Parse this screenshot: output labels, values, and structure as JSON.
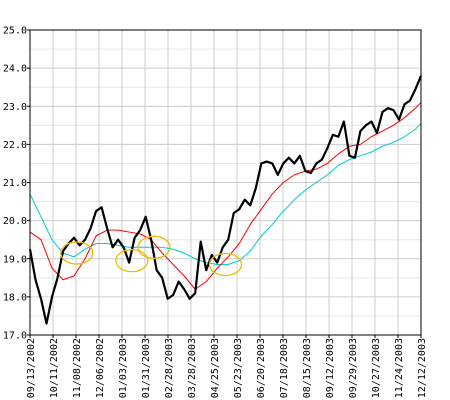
{
  "chart_data": {
    "type": "line",
    "grid": true,
    "ylim": [
      17.0,
      25.0
    ],
    "yticks": [
      17.0,
      18.0,
      19.0,
      20.0,
      21.0,
      22.0,
      23.0,
      24.0,
      25.0
    ],
    "yticklabels": [
      "17.0",
      "18.0",
      "19.0",
      "20.0",
      "21.0",
      "22.0",
      "23.0",
      "24.0",
      "25.0"
    ],
    "xlabels": [
      "09/13/2002",
      "10/11/2002",
      "11/08/2002",
      "12/06/2002",
      "01/03/2003",
      "01/31/2003",
      "02/28/2003",
      "03/28/2003",
      "04/25/2003",
      "05/23/2003",
      "06/20/2003",
      "07/18/2003",
      "08/15/2003",
      "09/12/2003",
      "09/29/2003",
      "10/27/2003",
      "11/24/2003",
      "12/12/2003"
    ],
    "colors": {
      "price": "#000000",
      "short_ma": "#ff0000",
      "long_ma": "#00cccc",
      "highlight": "#e8c000",
      "grid": "#cccccc",
      "grid_minor": "#e6e6e6"
    },
    "series": [
      {
        "key": "price",
        "values": [
          [
            0,
            19.25
          ],
          [
            1,
            18.45
          ],
          [
            2,
            17.95
          ],
          [
            3,
            17.3
          ],
          [
            4,
            18.0
          ],
          [
            5,
            18.5
          ],
          [
            6,
            19.2
          ],
          [
            7,
            19.4
          ],
          [
            8,
            19.55
          ],
          [
            9,
            19.35
          ],
          [
            10,
            19.5
          ],
          [
            11,
            19.8
          ],
          [
            12,
            20.25
          ],
          [
            13,
            20.35
          ],
          [
            14,
            19.8
          ],
          [
            15,
            19.3
          ],
          [
            16,
            19.5
          ],
          [
            17,
            19.3
          ],
          [
            18,
            18.9
          ],
          [
            19,
            19.55
          ],
          [
            20,
            19.75
          ],
          [
            21,
            20.1
          ],
          [
            22,
            19.5
          ],
          [
            23,
            18.7
          ],
          [
            24,
            18.5
          ],
          [
            25,
            17.95
          ],
          [
            26,
            18.05
          ],
          [
            27,
            18.4
          ],
          [
            28,
            18.2
          ],
          [
            29,
            17.95
          ],
          [
            30,
            18.1
          ],
          [
            31,
            19.45
          ],
          [
            32,
            18.7
          ],
          [
            33,
            19.1
          ],
          [
            34,
            18.9
          ],
          [
            35,
            19.3
          ],
          [
            36,
            19.5
          ],
          [
            37,
            20.2
          ],
          [
            38,
            20.3
          ],
          [
            39,
            20.55
          ],
          [
            40,
            20.4
          ],
          [
            41,
            20.85
          ],
          [
            42,
            21.5
          ],
          [
            43,
            21.55
          ],
          [
            44,
            21.5
          ],
          [
            45,
            21.2
          ],
          [
            46,
            21.5
          ],
          [
            47,
            21.65
          ],
          [
            48,
            21.5
          ],
          [
            49,
            21.7
          ],
          [
            50,
            21.3
          ],
          [
            51,
            21.25
          ],
          [
            52,
            21.5
          ],
          [
            53,
            21.6
          ],
          [
            54,
            21.9
          ],
          [
            55,
            22.25
          ],
          [
            56,
            22.2
          ],
          [
            57,
            22.6
          ],
          [
            58,
            21.7
          ],
          [
            59,
            21.65
          ],
          [
            60,
            22.35
          ],
          [
            61,
            22.5
          ],
          [
            62,
            22.6
          ],
          [
            63,
            22.3
          ],
          [
            64,
            22.85
          ],
          [
            65,
            22.95
          ],
          [
            66,
            22.9
          ],
          [
            67,
            22.65
          ],
          [
            68,
            23.05
          ],
          [
            69,
            23.15
          ],
          [
            70,
            23.45
          ],
          [
            71,
            23.8
          ]
        ]
      },
      {
        "key": "short_ma",
        "values": [
          [
            0,
            19.7
          ],
          [
            2,
            19.5
          ],
          [
            4,
            18.75
          ],
          [
            6,
            18.45
          ],
          [
            8,
            18.55
          ],
          [
            10,
            19.0
          ],
          [
            12,
            19.6
          ],
          [
            14,
            19.75
          ],
          [
            16,
            19.75
          ],
          [
            18,
            19.7
          ],
          [
            20,
            19.65
          ],
          [
            22,
            19.5
          ],
          [
            24,
            19.15
          ],
          [
            26,
            18.85
          ],
          [
            28,
            18.55
          ],
          [
            30,
            18.2
          ],
          [
            32,
            18.4
          ],
          [
            34,
            18.75
          ],
          [
            36,
            19.05
          ],
          [
            38,
            19.4
          ],
          [
            40,
            19.9
          ],
          [
            42,
            20.3
          ],
          [
            44,
            20.7
          ],
          [
            46,
            21.0
          ],
          [
            48,
            21.2
          ],
          [
            50,
            21.3
          ],
          [
            52,
            21.35
          ],
          [
            54,
            21.5
          ],
          [
            56,
            21.75
          ],
          [
            58,
            21.95
          ],
          [
            60,
            22.0
          ],
          [
            62,
            22.2
          ],
          [
            64,
            22.35
          ],
          [
            66,
            22.5
          ],
          [
            68,
            22.7
          ],
          [
            70,
            22.95
          ],
          [
            71,
            23.1
          ]
        ]
      },
      {
        "key": "long_ma",
        "values": [
          [
            0,
            20.7
          ],
          [
            2,
            20.1
          ],
          [
            4,
            19.5
          ],
          [
            6,
            19.15
          ],
          [
            8,
            19.05
          ],
          [
            10,
            19.25
          ],
          [
            12,
            19.4
          ],
          [
            14,
            19.4
          ],
          [
            16,
            19.35
          ],
          [
            18,
            19.3
          ],
          [
            20,
            19.3
          ],
          [
            22,
            19.3
          ],
          [
            24,
            19.3
          ],
          [
            26,
            19.25
          ],
          [
            28,
            19.15
          ],
          [
            30,
            19.0
          ],
          [
            32,
            18.9
          ],
          [
            34,
            18.85
          ],
          [
            36,
            18.85
          ],
          [
            38,
            18.95
          ],
          [
            40,
            19.2
          ],
          [
            42,
            19.6
          ],
          [
            44,
            19.9
          ],
          [
            46,
            20.25
          ],
          [
            48,
            20.55
          ],
          [
            50,
            20.8
          ],
          [
            52,
            21.0
          ],
          [
            54,
            21.2
          ],
          [
            56,
            21.45
          ],
          [
            58,
            21.6
          ],
          [
            60,
            21.7
          ],
          [
            62,
            21.8
          ],
          [
            64,
            21.95
          ],
          [
            66,
            22.05
          ],
          [
            68,
            22.2
          ],
          [
            70,
            22.4
          ],
          [
            71,
            22.55
          ]
        ]
      }
    ],
    "highlights": [
      {
        "x": 8.5,
        "y": 19.15
      },
      {
        "x": 18.5,
        "y": 18.95
      },
      {
        "x": 22.5,
        "y": 19.3
      },
      {
        "x": 35.5,
        "y": 18.85
      }
    ]
  }
}
